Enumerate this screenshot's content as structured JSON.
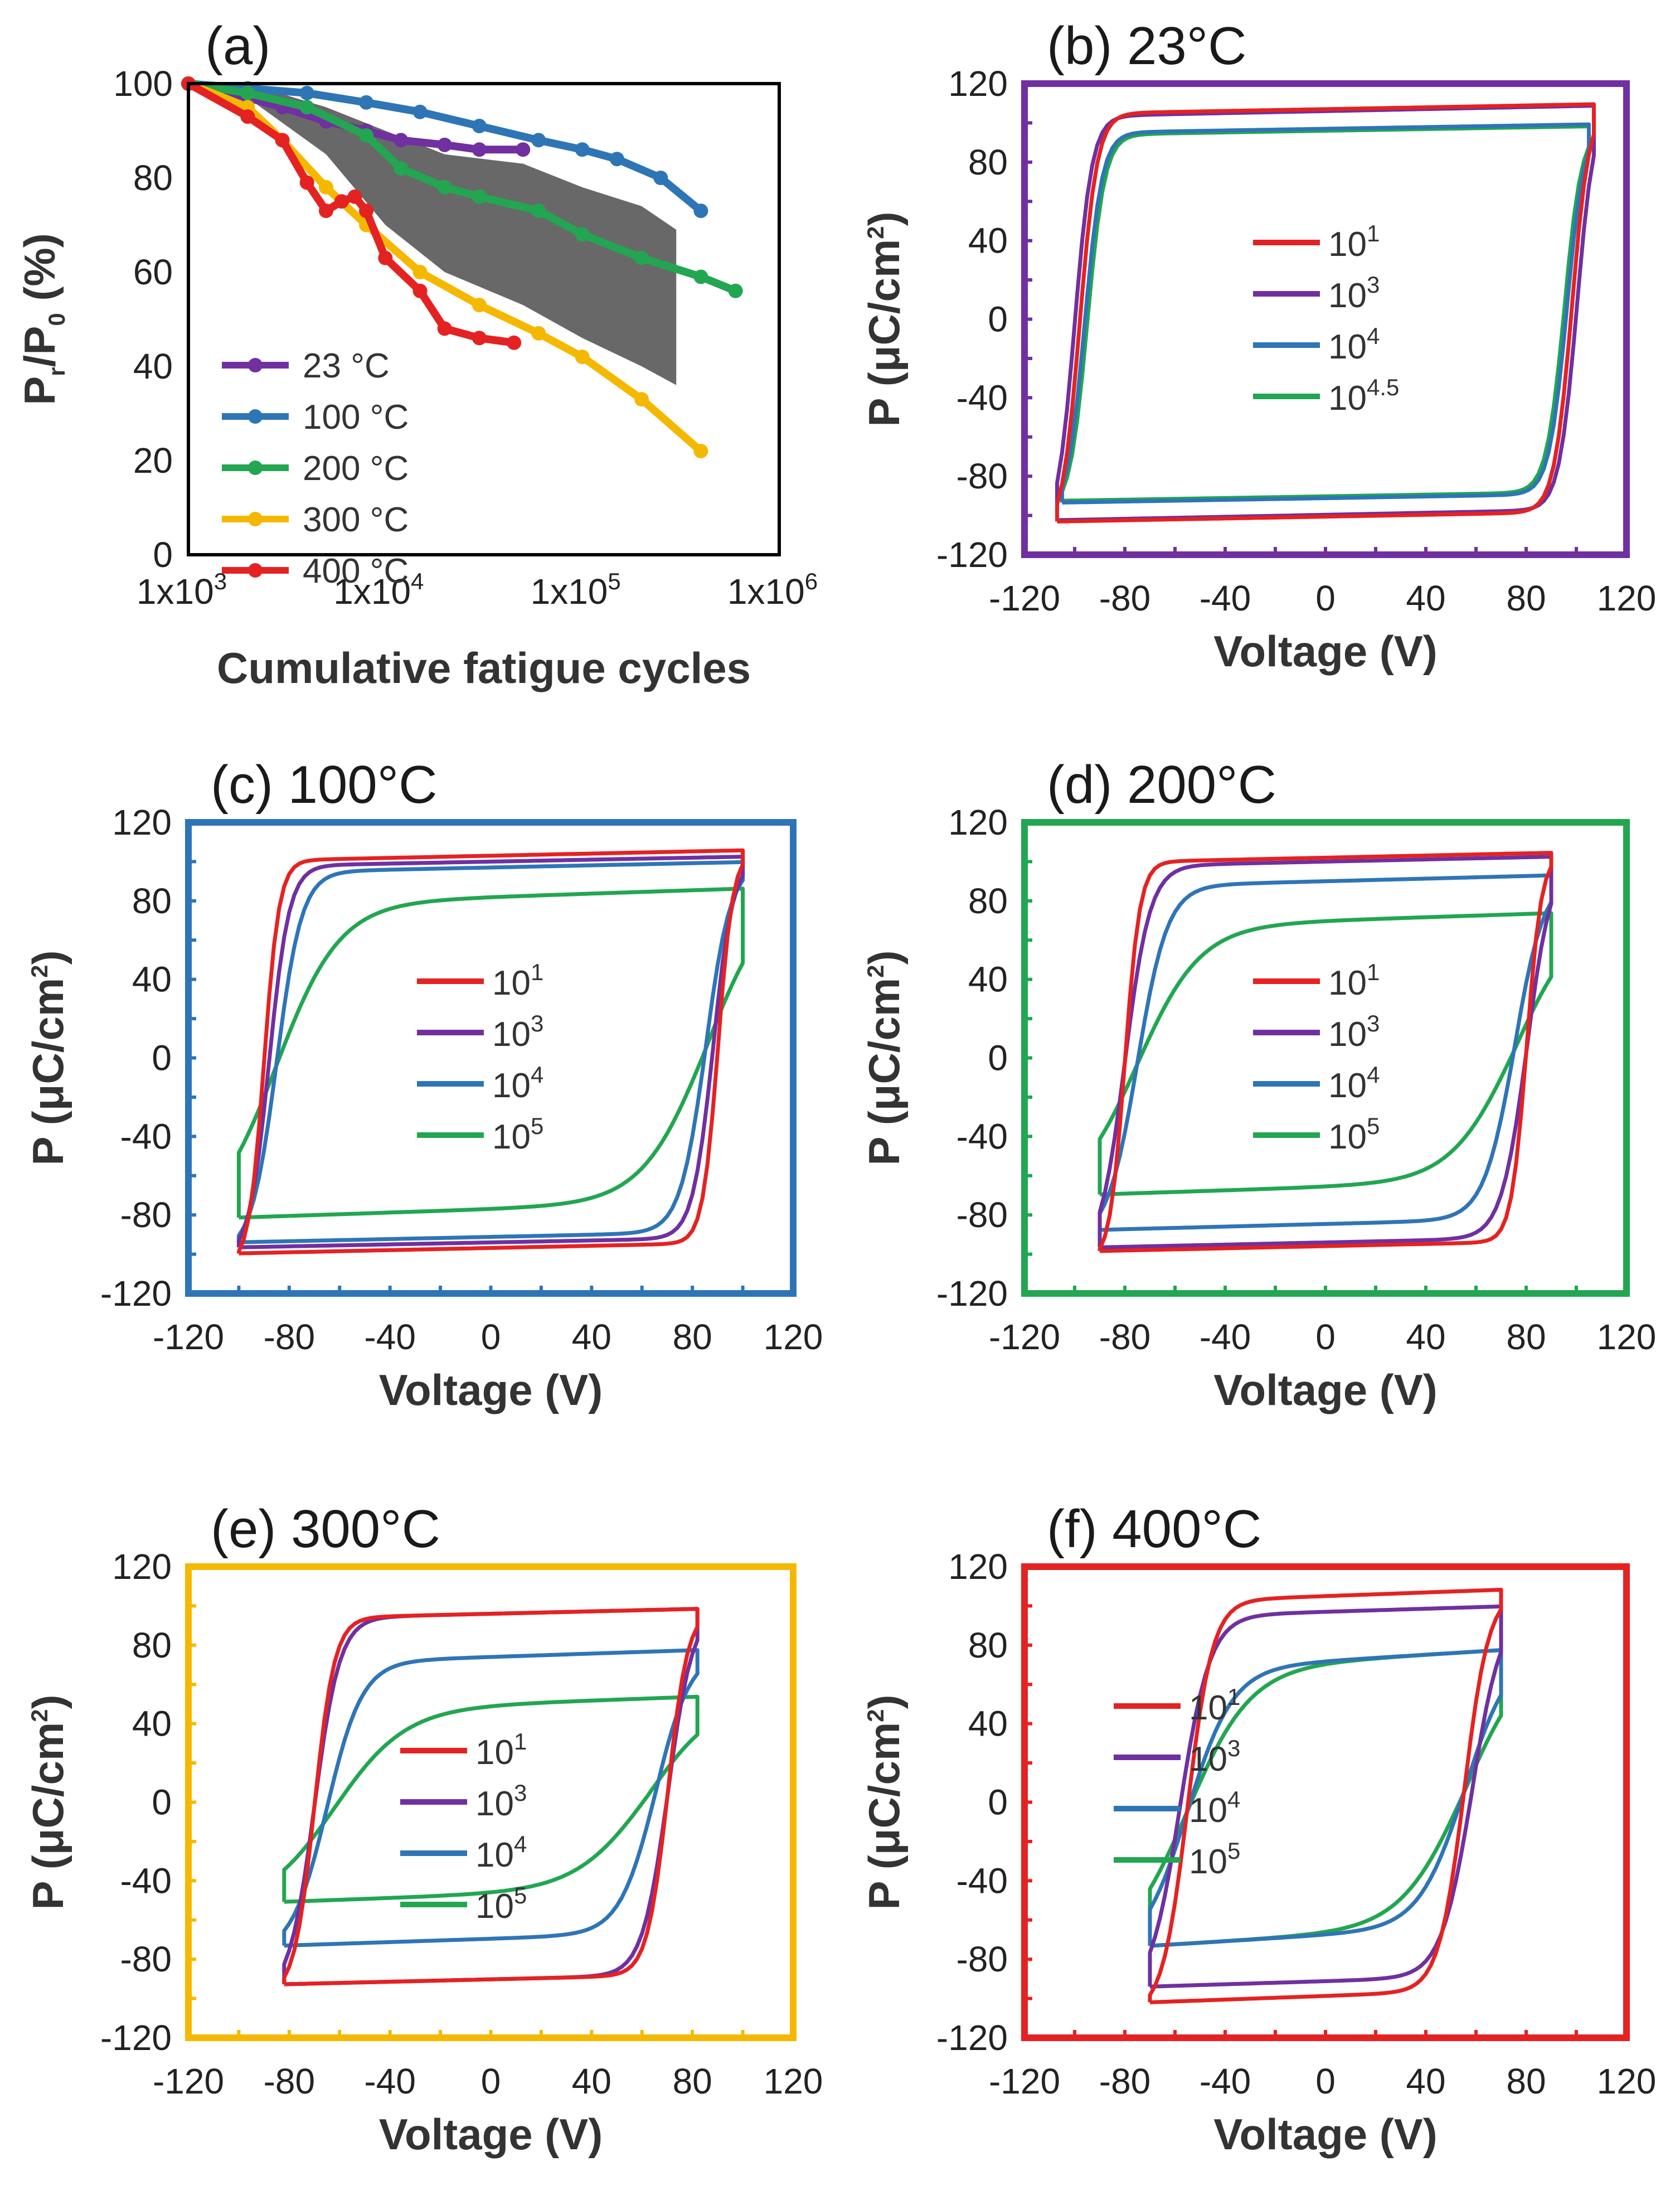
{
  "chart_data": [
    {
      "id": "a",
      "type": "line",
      "title": "(a)",
      "xlabel": "Cumulative fatigue cycles",
      "ylabel": "Pr/P0 (%)",
      "ylabel_main": "P",
      "ylabel_sub1": "r",
      "ylabel_mid": "/P",
      "ylabel_sub2": "0",
      "ylabel_tail": " (%)",
      "xscale": "log",
      "xlim": [
        1000,
        1000000
      ],
      "ylim": [
        0,
        100
      ],
      "xticks": [
        {
          "label": "1x10",
          "sup": "3",
          "value": 1000
        },
        {
          "label": "1x10",
          "sup": "4",
          "value": 10000
        },
        {
          "label": "1x10",
          "sup": "5",
          "value": 100000
        },
        {
          "label": "1x10",
          "sup": "6",
          "value": 1000000
        }
      ],
      "yticks": [
        0,
        20,
        40,
        60,
        80,
        100
      ],
      "frame_color": "#000000",
      "legend_position": "bottom-left",
      "series": [
        {
          "name": "23 °C",
          "color": "#7030A0",
          "x": [
            1000,
            2000,
            3000,
            5000,
            8000,
            12000,
            20000,
            30000,
            50000
          ],
          "y": [
            100,
            97,
            95,
            92,
            90,
            88,
            87,
            86,
            86
          ]
        },
        {
          "name": "100 °C",
          "color": "#2E75B6",
          "x": [
            1000,
            2000,
            4000,
            8000,
            15000,
            30000,
            60000,
            100000,
            150000,
            250000,
            400000
          ],
          "y": [
            100,
            99,
            98,
            96,
            94,
            91,
            88,
            86,
            84,
            80,
            73
          ]
        },
        {
          "name": "200 °C",
          "color": "#22A651",
          "x": [
            1000,
            2000,
            4000,
            8000,
            12000,
            20000,
            30000,
            60000,
            100000,
            200000,
            400000,
            600000
          ],
          "y": [
            100,
            98,
            95,
            89,
            82,
            78,
            76,
            73,
            68,
            63,
            59,
            56
          ]
        },
        {
          "name": "300 °C",
          "color": "#F5B800",
          "x": [
            1000,
            2000,
            3000,
            5000,
            8000,
            15000,
            30000,
            60000,
            100000,
            200000,
            400000
          ],
          "y": [
            100,
            95,
            88,
            78,
            70,
            60,
            53,
            47,
            42,
            33,
            22
          ]
        },
        {
          "name": "400 °C",
          "color": "#E52222",
          "x": [
            1000,
            2000,
            3000,
            4000,
            5000,
            6000,
            7000,
            8000,
            10000,
            15000,
            20000,
            30000,
            45000
          ],
          "y": [
            100,
            93,
            88,
            79,
            73,
            75,
            76,
            73,
            63,
            56,
            48,
            46,
            45
          ]
        }
      ],
      "gray_band": {
        "color": "#4d4d4d",
        "x": [
          2000,
          5000,
          10000,
          20000,
          50000,
          100000,
          200000,
          300000
        ],
        "upper": [
          100,
          95,
          90,
          85,
          83,
          78,
          74,
          69
        ],
        "lower": [
          97,
          85,
          70,
          60,
          53,
          46,
          40,
          36
        ]
      }
    },
    {
      "id": "b",
      "type": "line",
      "title": "(b) 23°C",
      "xlabel": "Voltage (V)",
      "ylabel": "P (μC/cm²)",
      "ylabel_text": "P (μC/cm",
      "ylabel_sup": "2",
      "ylabel_tail": ")",
      "xlim": [
        -120,
        120
      ],
      "ylim": [
        -120,
        120
      ],
      "xticks": [
        -120,
        -80,
        -40,
        0,
        40,
        80,
        120
      ],
      "yticks": [
        120,
        80,
        40,
        0,
        -40,
        -80,
        -120
      ],
      "frame_color": "#7030A0",
      "legend_position": "center",
      "series": [
        {
          "name": "10",
          "sup": "1",
          "color": "#E52222",
          "loop": {
            "vc": 98,
            "vm": 107,
            "ps": 107,
            "pr": 97,
            "sh": 7
          }
        },
        {
          "name": "10",
          "sup": "3",
          "color": "#7030A0",
          "loop": {
            "vc": 100,
            "vm": 107,
            "ps": 106,
            "pr": 95,
            "sh": 7
          }
        },
        {
          "name": "10",
          "sup": "4",
          "color": "#2E75B6",
          "loop": {
            "vc": 96,
            "vm": 105,
            "ps": 97,
            "pr": 88,
            "sh": 7
          }
        },
        {
          "name": "10",
          "sup": "4.5",
          "color": "#22A651",
          "loop": {
            "vc": 95,
            "vm": 105,
            "ps": 96,
            "pr": 87,
            "sh": 7
          }
        }
      ]
    },
    {
      "id": "c",
      "type": "line",
      "title": "(c) 100°C",
      "xlabel": "Voltage (V)",
      "ylabel": "P (μC/cm²)",
      "ylabel_text": "P (μC/cm",
      "ylabel_sup": "2",
      "ylabel_tail": ")",
      "xlim": [
        -120,
        120
      ],
      "ylim": [
        -120,
        120
      ],
      "xticks": [
        -120,
        -80,
        -40,
        0,
        40,
        80,
        120
      ],
      "yticks": [
        120,
        80,
        40,
        0,
        -40,
        -80,
        -120
      ],
      "frame_color": "#2E75B6",
      "legend_position": "center",
      "series": [
        {
          "name": "10",
          "sup": "1",
          "color": "#E52222",
          "loop": {
            "vc": 90,
            "vm": 100,
            "ps": 103,
            "pr": 92,
            "sh": 6
          }
        },
        {
          "name": "10",
          "sup": "3",
          "color": "#7030A0",
          "loop": {
            "vc": 88,
            "vm": 100,
            "ps": 100,
            "pr": 90,
            "sh": 8
          }
        },
        {
          "name": "10",
          "sup": "4",
          "color": "#2E75B6",
          "loop": {
            "vc": 85,
            "vm": 100,
            "ps": 97,
            "pr": 86,
            "sh": 10
          }
        },
        {
          "name": "10",
          "sup": "5",
          "color": "#22A651",
          "loop": {
            "vc": 85,
            "vm": 100,
            "ps": 82,
            "pr": 65,
            "sh": 25
          }
        }
      ]
    },
    {
      "id": "d",
      "type": "line",
      "title": "(d) 200°C",
      "xlabel": "Voltage (V)",
      "ylabel": "P (μC/cm²)",
      "ylabel_text": "P (μC/cm",
      "ylabel_sup": "2",
      "ylabel_tail": ")",
      "xlim": [
        -120,
        120
      ],
      "ylim": [
        -120,
        120
      ],
      "xticks": [
        -120,
        -80,
        -40,
        0,
        40,
        80,
        120
      ],
      "yticks": [
        120,
        80,
        40,
        0,
        -40,
        -80,
        -120
      ],
      "frame_color": "#22A651",
      "legend_position": "center",
      "series": [
        {
          "name": "10",
          "sup": "1",
          "color": "#E52222",
          "loop": {
            "vc": 80,
            "vm": 90,
            "ps": 102,
            "pr": 92,
            "sh": 6
          }
        },
        {
          "name": "10",
          "sup": "3",
          "color": "#7030A0",
          "loop": {
            "vc": 80,
            "vm": 90,
            "ps": 100,
            "pr": 90,
            "sh": 10
          }
        },
        {
          "name": "10",
          "sup": "4",
          "color": "#2E75B6",
          "loop": {
            "vc": 75,
            "vm": 90,
            "ps": 90,
            "pr": 78,
            "sh": 12
          }
        },
        {
          "name": "10",
          "sup": "5",
          "color": "#22A651",
          "loop": {
            "vc": 75,
            "vm": 90,
            "ps": 70,
            "pr": 55,
            "sh": 25
          }
        }
      ]
    },
    {
      "id": "e",
      "type": "line",
      "title": "(e) 300°C",
      "xlabel": "Voltage (V)",
      "ylabel": "P (μC/cm²)",
      "ylabel_text": "P (μC/cm",
      "ylabel_sup": "2",
      "ylabel_tail": ")",
      "xlim": [
        -120,
        120
      ],
      "ylim": [
        -120,
        120
      ],
      "xticks": [
        -120,
        -80,
        -40,
        0,
        40,
        80,
        120
      ],
      "yticks": [
        120,
        80,
        40,
        0,
        -40,
        -80,
        -120
      ],
      "frame_color": "#F5B800",
      "legend_position": "center",
      "series": [
        {
          "name": "10",
          "sup": "1",
          "color": "#E52222",
          "loop": {
            "vc": 70,
            "vm": 82,
            "ps": 96,
            "pr": 86,
            "sh": 8
          }
        },
        {
          "name": "10",
          "sup": "3",
          "color": "#7030A0",
          "loop": {
            "vc": 70,
            "vm": 82,
            "ps": 96,
            "pr": 86,
            "sh": 10
          }
        },
        {
          "name": "10",
          "sup": "4",
          "color": "#2E75B6",
          "loop": {
            "vc": 65,
            "vm": 82,
            "ps": 74,
            "pr": 60,
            "sh": 14
          }
        },
        {
          "name": "10",
          "sup": "5",
          "color": "#22A651",
          "loop": {
            "vc": 62,
            "vm": 82,
            "ps": 50,
            "pr": 35,
            "sh": 28
          }
        }
      ]
    },
    {
      "id": "f",
      "type": "line",
      "title": "(f) 400°C",
      "xlabel": "Voltage (V)",
      "ylabel": "P (μC/cm²)",
      "ylabel_text": "P (μC/cm",
      "ylabel_sup": "2",
      "ylabel_tail": ")",
      "xlim": [
        -120,
        120
      ],
      "ylim": [
        -120,
        120
      ],
      "xticks": [
        -120,
        -80,
        -40,
        0,
        40,
        80,
        120
      ],
      "yticks": [
        120,
        80,
        40,
        0,
        -40,
        -80,
        -120
      ],
      "frame_color": "#E52222",
      "legend_position": "center",
      "series": [
        {
          "name": "10",
          "sup": "1",
          "color": "#E52222",
          "loop": {
            "vc": 55,
            "vm": 70,
            "ps": 105,
            "pr": 92,
            "sh": 10
          }
        },
        {
          "name": "10",
          "sup": "3",
          "color": "#7030A0",
          "loop": {
            "vc": 58,
            "vm": 70,
            "ps": 97,
            "pr": 86,
            "sh": 12
          }
        },
        {
          "name": "10",
          "sup": "4",
          "color": "#2E75B6",
          "loop": {
            "vc": 55,
            "vm": 70,
            "ps": 72,
            "pr": 50,
            "sh": 18
          }
        },
        {
          "name": "10",
          "sup": "5",
          "color": "#22A651",
          "loop": {
            "vc": 55,
            "vm": 70,
            "ps": 72,
            "pr": 50,
            "sh": 25
          }
        }
      ]
    }
  ]
}
